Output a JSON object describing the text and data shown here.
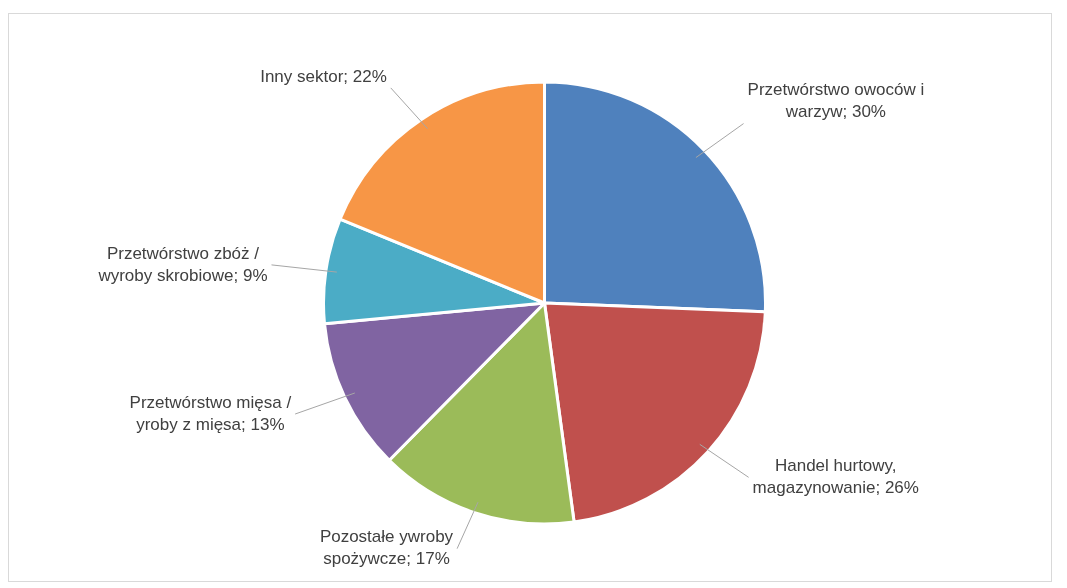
{
  "chart_data": {
    "type": "pie",
    "categories": [
      "Przetwórstwo owoców i warzyw",
      "Handel hurtowy, magazynowanie",
      "Pozostałe ywroby spożywcze",
      "Przetwórstwo mięsa / yroby z mięsa",
      "Przetwórstwo zbóż / wyroby skrobiowe",
      "Inny sektor"
    ],
    "values": [
      30,
      26,
      17,
      13,
      9,
      22
    ],
    "value_labels": [
      "30%",
      "26%",
      "17%",
      "13%",
      "9%",
      "22%"
    ],
    "colors": [
      "#4f81bd",
      "#c0504d",
      "#9bbb59",
      "#8064a2",
      "#4bacc6",
      "#f79646"
    ],
    "legend": false
  }
}
